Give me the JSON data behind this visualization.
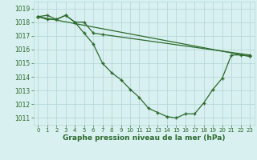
{
  "xlabel": "Graphe pression niveau de la mer (hPa)",
  "background_color": "#d8f0f0",
  "grid_color": "#b8d8d8",
  "line_color": "#2d6a2d",
  "ylim": [
    1010.5,
    1019.5
  ],
  "xlim": [
    -0.5,
    23.5
  ],
  "yticks": [
    1011,
    1012,
    1013,
    1014,
    1015,
    1016,
    1017,
    1018,
    1019
  ],
  "xticks": [
    0,
    1,
    2,
    3,
    4,
    5,
    6,
    7,
    8,
    9,
    10,
    11,
    12,
    13,
    14,
    15,
    16,
    17,
    18,
    19,
    20,
    21,
    22,
    23
  ],
  "line1_x": [
    0,
    1,
    2,
    3,
    4,
    5,
    6,
    7,
    8,
    9,
    10,
    11,
    12,
    13,
    14,
    15,
    16,
    17,
    18,
    19,
    20,
    21,
    22,
    23
  ],
  "line1_y": [
    1018.4,
    1018.5,
    1018.2,
    1018.5,
    1018.0,
    1017.2,
    1016.4,
    1015.0,
    1014.3,
    1013.8,
    1013.1,
    1012.5,
    1011.7,
    1011.4,
    1011.1,
    1011.0,
    1011.3,
    1011.3,
    1012.1,
    1013.1,
    1013.9,
    1015.6,
    1015.6,
    1015.5
  ],
  "line2_x": [
    0,
    1,
    2,
    3,
    4,
    5,
    6,
    7,
    23
  ],
  "line2_y": [
    1018.4,
    1018.2,
    1018.2,
    1018.5,
    1018.0,
    1018.0,
    1017.2,
    1017.1,
    1015.6
  ],
  "line3_x": [
    0,
    23
  ],
  "line3_y": [
    1018.4,
    1015.5
  ],
  "tick_fontsize": 5.5,
  "xlabel_fontsize": 6.5
}
